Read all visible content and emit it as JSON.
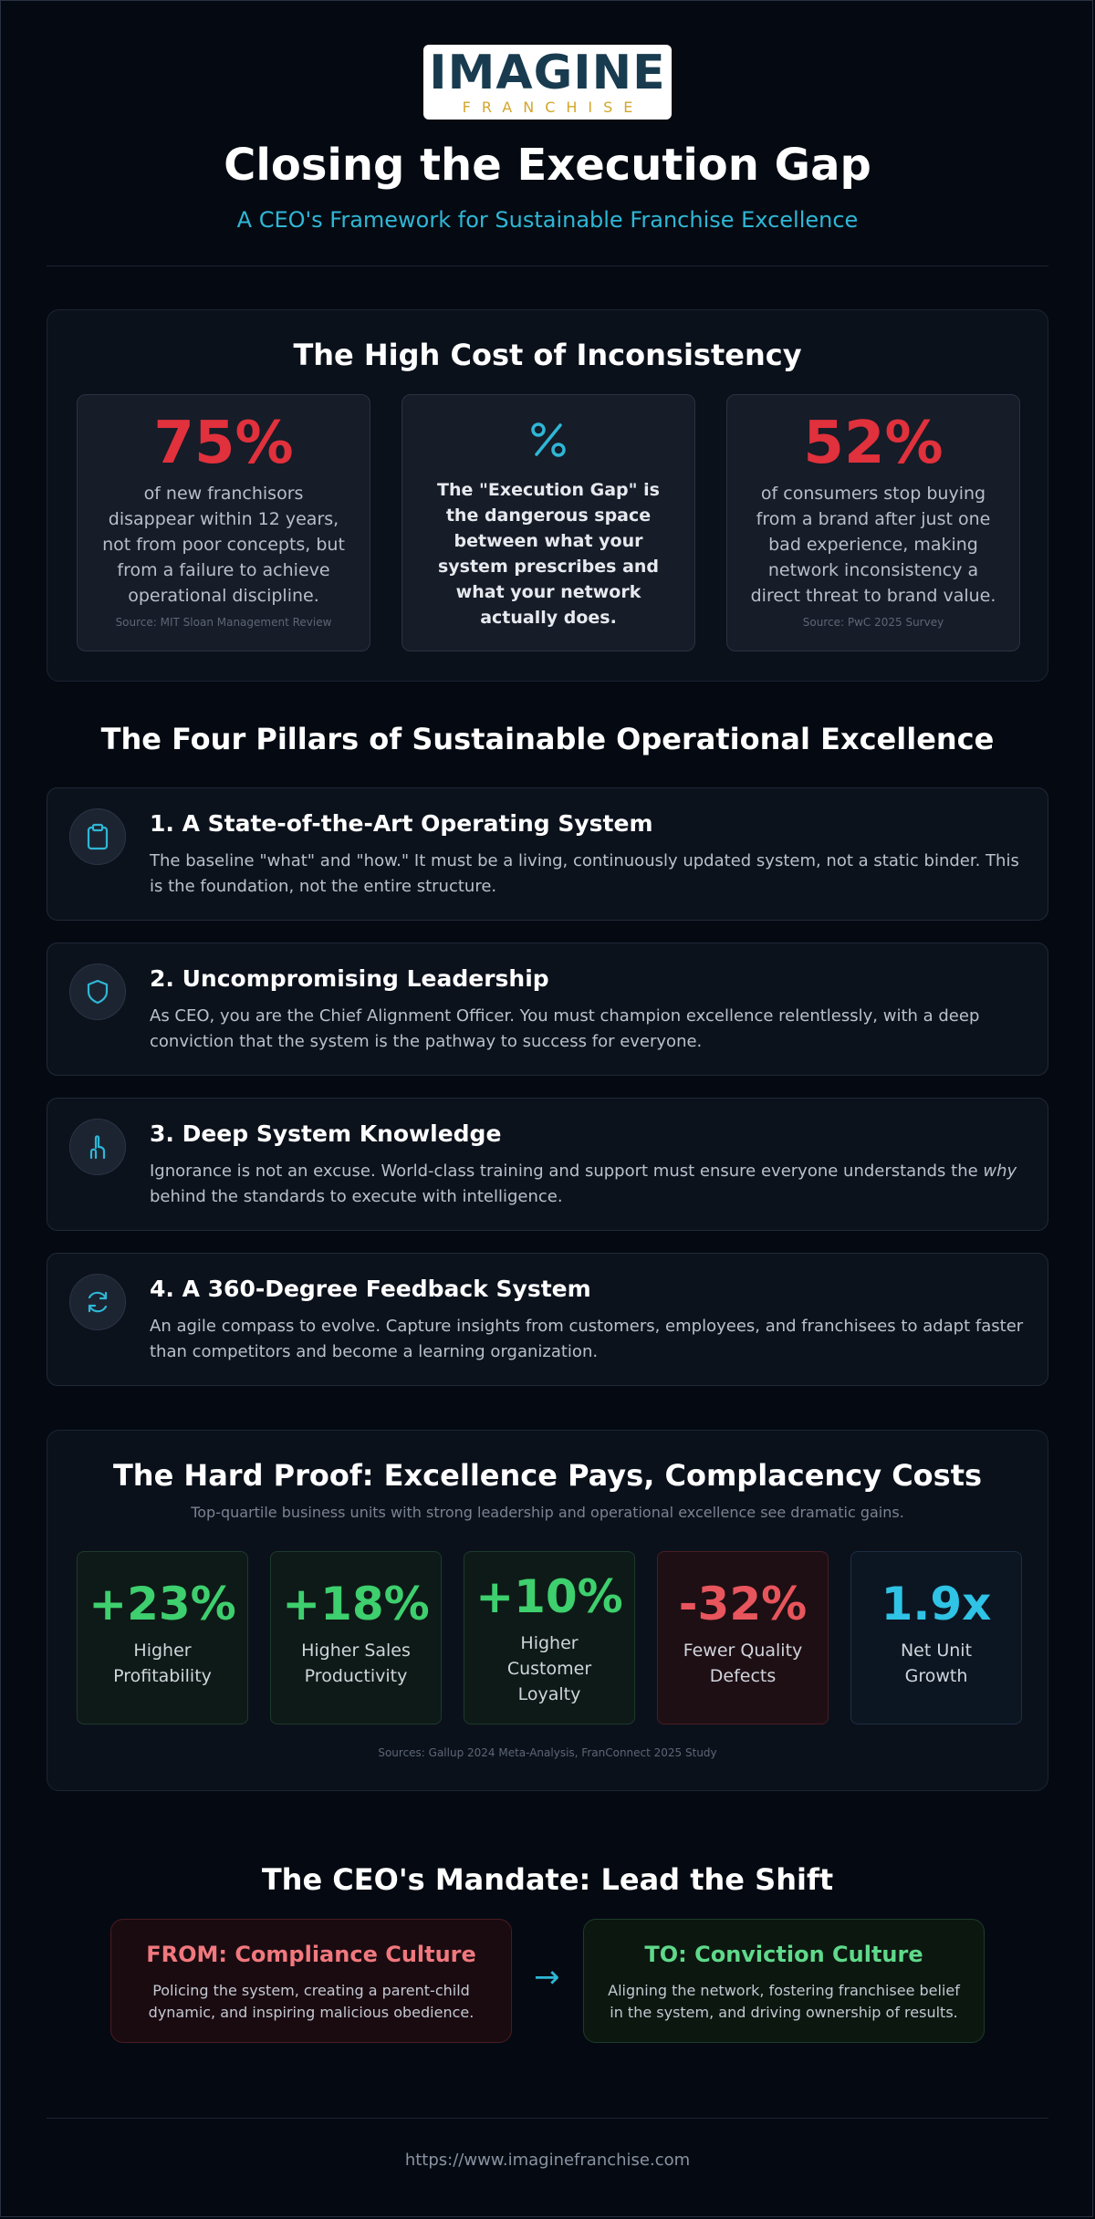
{
  "logo": {
    "main": "IMAGINE",
    "sub": "FRANCHISE"
  },
  "header": {
    "title": "Closing the Execution Gap",
    "subtitle": "A CEO's Framework for Sustainable Franchise Excellence"
  },
  "cost": {
    "title": "The High Cost of Inconsistency",
    "cards": [
      {
        "value": "75%",
        "text": "of new franchisors disappear within 12 years, not from poor concepts, but from a failure to achieve operational discipline.",
        "source": "Source: MIT Sloan Management Review"
      },
      {
        "icon": "percent-icon",
        "text": "The \"Execution Gap\" is the dangerous space between what your system prescribes and what your network actually does."
      },
      {
        "value": "52%",
        "text": "of consumers stop buying from a brand after just one bad experience, making network inconsistency a direct threat to brand value.",
        "source": "Source: PwC 2025 Survey"
      }
    ]
  },
  "pillars": {
    "title": "The Four Pillars of Sustainable Operational Excellence",
    "items": [
      {
        "icon": "clipboard-icon",
        "title": "1. A State-of-the-Art Operating System",
        "body": "The baseline \"what\" and \"how.\" It must be a living, continuously updated system, not a static binder. This is the foundation, not the entire structure."
      },
      {
        "icon": "shield-icon",
        "title": "2. Uncompromising Leadership",
        "body": "As CEO, you are the Chief Alignment Officer. You must champion excellence relentlessly, with a deep conviction that the system is the pathway to success for everyone."
      },
      {
        "icon": "hand-pointer-icon",
        "title": "3. Deep System Knowledge",
        "body_pre": "Ignorance is not an excuse. World-class training and support must ensure everyone understands the ",
        "body_em": "why",
        "body_post": " behind the standards to execute with intelligence."
      },
      {
        "icon": "refresh-icon",
        "title": "4. A 360-Degree Feedback System",
        "body": "An agile compass to evolve. Capture insights from customers, employees, and franchisees to adapt faster than competitors and become a learning organization."
      }
    ]
  },
  "proof": {
    "title": "The Hard Proof: Excellence Pays, Complacency Costs",
    "subtitle": "Top-quartile business units with strong leadership and operational excellence see dramatic gains.",
    "metrics": [
      {
        "value": "+23%",
        "label": "Higher Profitability"
      },
      {
        "value": "+18%",
        "label": "Higher Sales Productivity"
      },
      {
        "value": "+10%",
        "label": "Higher Customer Loyalty"
      },
      {
        "value": "-32%",
        "label": "Fewer Quality Defects"
      },
      {
        "value": "1.9x",
        "label": "Net Unit Growth"
      }
    ],
    "sources": "Sources: Gallup 2024 Meta-Analysis, FranConnect 2025 Study"
  },
  "mandate": {
    "title": "The CEO's Mandate: Lead the Shift",
    "from_title": "FROM: Compliance Culture",
    "from_text": "Policing the system, creating a parent-child dynamic, and inspiring malicious obedience.",
    "arrow": "→",
    "to_title": "TO: Conviction Culture",
    "to_text": "Aligning the network, fostering franchisee belief in the system, and driving ownership of results."
  },
  "footer": {
    "url": "https://www.imaginefranchise.com"
  },
  "colors": {
    "accent": "#2fb7d6",
    "red": "#e0313c",
    "green": "#3ecf6e",
    "negative": "#e8555c",
    "blue": "#2fc3e6"
  }
}
